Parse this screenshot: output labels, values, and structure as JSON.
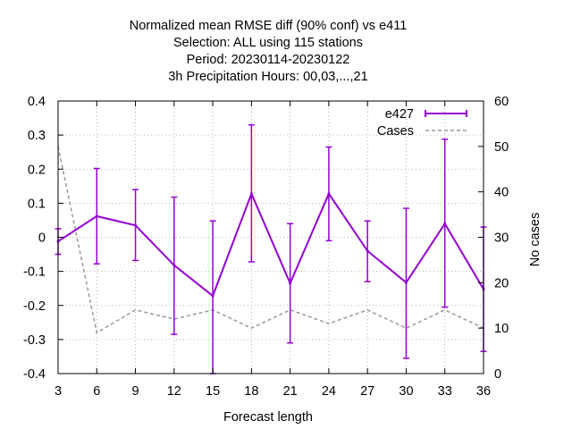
{
  "chart_data": {
    "type": "line",
    "title_lines": [
      "Normalized mean RMSE diff (90% conf) vs e411",
      "Selection: ALL using   115 stations",
      "Period: 20230114-20230122",
      "3h Precipitation   Hours:  00,03,...,21"
    ],
    "xlabel": "Forecast length",
    "ylabel": "",
    "y2label": "No cases",
    "x": [
      3,
      6,
      9,
      12,
      15,
      18,
      21,
      24,
      27,
      30,
      33,
      36
    ],
    "xlim": [
      3,
      36
    ],
    "ylim": [
      -0.4,
      0.4
    ],
    "y2lim": [
      0,
      60
    ],
    "x_ticks": [
      "3",
      "6",
      "9",
      "12",
      "15",
      "18",
      "21",
      "24",
      "27",
      "30",
      "33",
      "36"
    ],
    "y_ticks": [
      "0.4",
      "0.3",
      "0.2",
      "0.1",
      "0",
      "-0.1",
      "-0.2",
      "-0.3",
      "-0.4"
    ],
    "y2_ticks": [
      "60",
      "50",
      "40",
      "30",
      "20",
      "10",
      "0"
    ],
    "grid": true,
    "legend_position": "top-right",
    "series": [
      {
        "name": "e427",
        "axis": "y",
        "color": "#9400d3",
        "style": "solid-with-errorbars",
        "values": [
          -0.012,
          0.062,
          0.035,
          -0.082,
          -0.172,
          0.128,
          -0.135,
          0.128,
          -0.04,
          -0.133,
          0.04,
          -0.152
        ],
        "err_low": [
          -0.05,
          -0.078,
          -0.068,
          -0.285,
          -0.4,
          -0.072,
          -0.31,
          -0.01,
          -0.13,
          -0.355,
          -0.205,
          -0.335
        ],
        "err_high": [
          0.025,
          0.202,
          0.14,
          0.118,
          0.048,
          0.33,
          0.04,
          0.265,
          0.048,
          0.085,
          0.288,
          0.03
        ]
      },
      {
        "name": "Cases",
        "axis": "y2",
        "color": "#999999",
        "style": "dashed",
        "values": [
          50,
          9,
          14,
          12,
          14,
          10,
          14,
          11,
          14,
          10,
          14,
          10
        ]
      }
    ]
  }
}
